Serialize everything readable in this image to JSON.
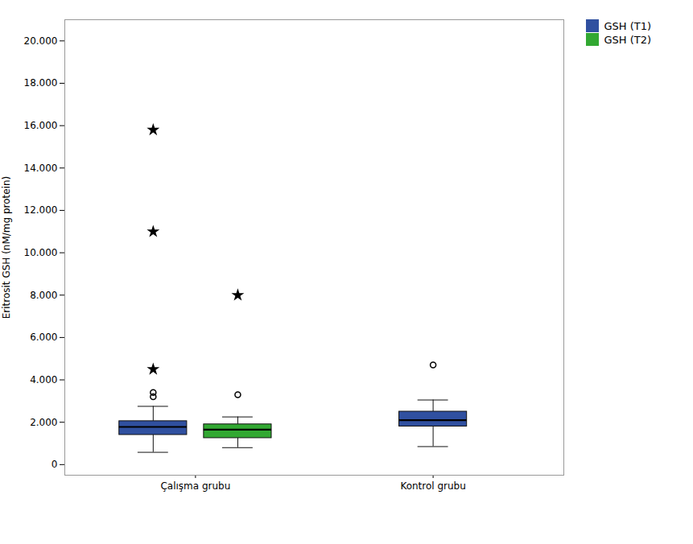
{
  "chart_data": {
    "type": "box",
    "ylabel": "Eritrosit GSH (nM/mg protein)",
    "categories": [
      "Çalışma grubu",
      "Kontrol grubu"
    ],
    "series": [
      {
        "name": "GSH (T1)",
        "color": "#3050A0",
        "values": [
          {
            "q1": 1400,
            "median": 1780,
            "q3": 2050,
            "whislo": 580,
            "whishi": 2750,
            "mild_outliers": [
              3200,
              3400
            ],
            "extreme_outliers": [
              4500,
              11000,
              15800
            ]
          },
          {
            "q1": 1800,
            "median": 2100,
            "q3": 2500,
            "whislo": 850,
            "whishi": 3050,
            "mild_outliers": [
              4700
            ],
            "extreme_outliers": []
          }
        ]
      },
      {
        "name": "GSH (T2)",
        "color": "#32A832",
        "values": [
          {
            "q1": 1250,
            "median": 1650,
            "q3": 1900,
            "whislo": 800,
            "whishi": 2250,
            "mild_outliers": [
              3300
            ],
            "extreme_outliers": [
              8000
            ]
          },
          null
        ]
      }
    ],
    "ylim": [
      -500,
      21000
    ],
    "yticks": [
      0,
      {
        "value": 2000,
        "label": "2.000"
      },
      {
        "value": 4000,
        "label": "4.000"
      },
      {
        "value": 6000,
        "label": "6.000"
      },
      {
        "value": 8000,
        "label": "8.000"
      },
      {
        "value": 10000,
        "label": "10.000"
      },
      {
        "value": 12000,
        "label": "12.000"
      },
      {
        "value": 14000,
        "label": "14.000"
      },
      {
        "value": 16000,
        "label": "16.000"
      },
      {
        "value": 18000,
        "label": "18.000"
      },
      {
        "value": 20000,
        "label": "20.000"
      }
    ],
    "grid": false,
    "legend": "right"
  }
}
